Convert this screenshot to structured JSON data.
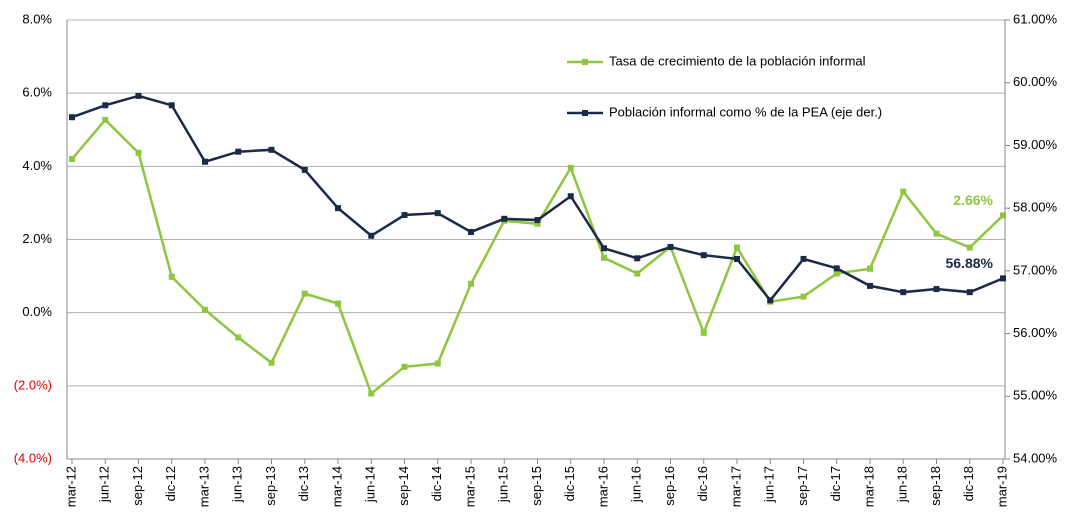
{
  "chart_data": {
    "type": "line",
    "categories": [
      "mar-12",
      "jun-12",
      "sep-12",
      "dic-12",
      "mar-13",
      "jun-13",
      "sep-13",
      "dic-13",
      "mar-14",
      "jun-14",
      "sep-14",
      "dic-14",
      "mar-15",
      "jun-15",
      "sep-15",
      "dic-15",
      "mar-16",
      "jun-16",
      "sep-16",
      "dic-16",
      "mar-17",
      "jun-17",
      "sep-17",
      "dic-17",
      "mar-18",
      "jun-18",
      "sep-18",
      "dic-18",
      "mar-19"
    ],
    "series": [
      {
        "name": "Tasa de crecimiento de la población informal",
        "color": "#8dc63f",
        "values": [
          4.2,
          5.27,
          4.37,
          0.98,
          0.08,
          -0.68,
          -1.37,
          0.52,
          0.25,
          -2.21,
          -1.48,
          -1.39,
          0.79,
          2.51,
          2.43,
          3.96,
          1.5,
          1.07,
          1.8,
          -0.55,
          1.78,
          0.3,
          0.44,
          1.07,
          1.2,
          3.31,
          2.16,
          1.78,
          2.66
        ],
        "value_labels": [
          null,
          null,
          null,
          null,
          null,
          null,
          null,
          null,
          null,
          null,
          null,
          null,
          null,
          null,
          null,
          null,
          null,
          null,
          null,
          null,
          null,
          null,
          null,
          null,
          null,
          null,
          null,
          null,
          "2.66%"
        ]
      },
      {
        "name": "Población informal como % de la PEA (eje der.)",
        "color": "#1b2a47",
        "axis": "y2",
        "values": [
          59.45,
          59.64,
          59.79,
          59.64,
          58.74,
          58.9,
          58.93,
          58.61,
          58.0,
          57.56,
          57.89,
          57.92,
          57.62,
          57.83,
          57.81,
          58.19,
          57.36,
          57.2,
          57.38,
          57.25,
          57.19,
          56.53,
          57.19,
          57.04,
          56.76,
          56.66,
          56.71,
          56.66,
          56.88
        ],
        "value_labels": [
          null,
          null,
          null,
          null,
          null,
          null,
          null,
          null,
          null,
          null,
          null,
          null,
          null,
          null,
          null,
          null,
          null,
          null,
          null,
          null,
          null,
          null,
          null,
          null,
          null,
          null,
          null,
          null,
          "56.88%"
        ]
      }
    ],
    "ylim": [
      -4,
      8
    ],
    "yticks": [
      {
        "value": -4,
        "label": "(4.0%)"
      },
      {
        "value": -2,
        "label": "(2.0%)"
      },
      {
        "value": 0,
        "label": "0.0%"
      },
      {
        "value": 2,
        "label": "2.0%"
      },
      {
        "value": 4,
        "label": "4.0%"
      },
      {
        "value": 6,
        "label": "6.0%"
      },
      {
        "value": 8,
        "label": "8.0%"
      }
    ],
    "y2lim": [
      54,
      61
    ],
    "y2ticks": [
      {
        "value": 54,
        "label": "54.00%"
      },
      {
        "value": 55,
        "label": "55.00%"
      },
      {
        "value": 56,
        "label": "56.00%"
      },
      {
        "value": 57,
        "label": "57.00%"
      },
      {
        "value": 58,
        "label": "58.00%"
      },
      {
        "value": 59,
        "label": "59.00%"
      },
      {
        "value": 60,
        "label": "60.00%"
      },
      {
        "value": 61,
        "label": "61.00%"
      }
    ],
    "grid": true
  }
}
